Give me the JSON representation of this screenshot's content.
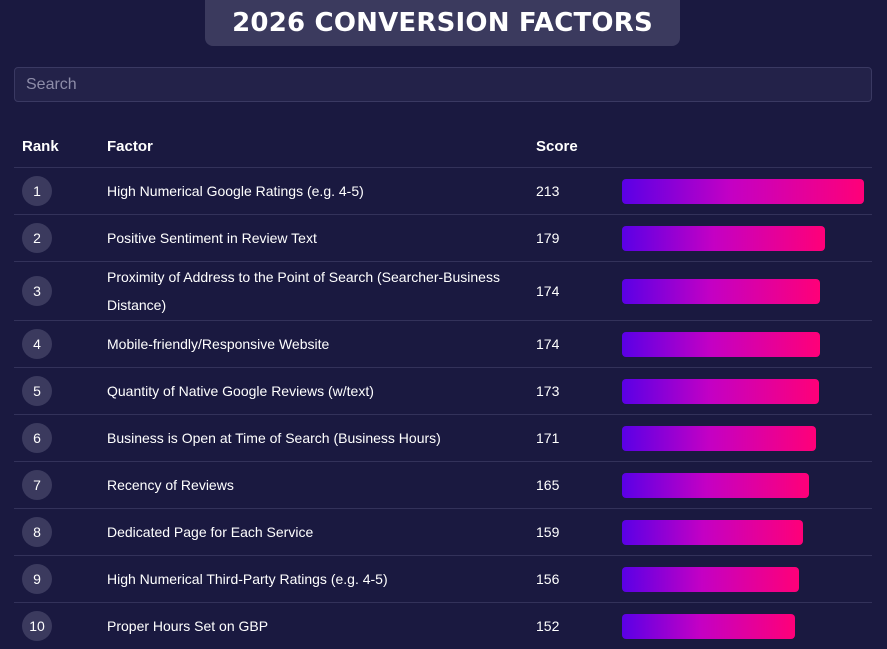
{
  "title": "2026 CONVERSION FACTORS",
  "search": {
    "placeholder": "Search",
    "value": ""
  },
  "table": {
    "headers": {
      "rank": "Rank",
      "factor": "Factor",
      "score": "Score"
    },
    "rows": [
      {
        "rank": "1",
        "factor": "High Numerical Google Ratings (e.g. 4-5)",
        "score": 213
      },
      {
        "rank": "2",
        "factor": "Positive Sentiment in Review Text",
        "score": 179
      },
      {
        "rank": "3",
        "factor": "Proximity of Address to the Point of Search (Searcher-Business Distance)",
        "score": 174
      },
      {
        "rank": "4",
        "factor": "Mobile-friendly/Responsive Website",
        "score": 174
      },
      {
        "rank": "5",
        "factor": "Quantity of Native Google Reviews (w/text)",
        "score": 173
      },
      {
        "rank": "6",
        "factor": "Business is Open at Time of Search (Business Hours)",
        "score": 171
      },
      {
        "rank": "7",
        "factor": "Recency of Reviews",
        "score": 165
      },
      {
        "rank": "8",
        "factor": "Dedicated Page for Each Service",
        "score": 159
      },
      {
        "rank": "9",
        "factor": "High Numerical Third-Party Ratings (e.g. 4-5)",
        "score": 156
      },
      {
        "rank": "10",
        "factor": "Proper Hours Set on GBP",
        "score": 152
      }
    ]
  },
  "colors": {
    "background": "#1a1940",
    "bar_start": "#5a00e6",
    "bar_end": "#ff0078"
  }
}
